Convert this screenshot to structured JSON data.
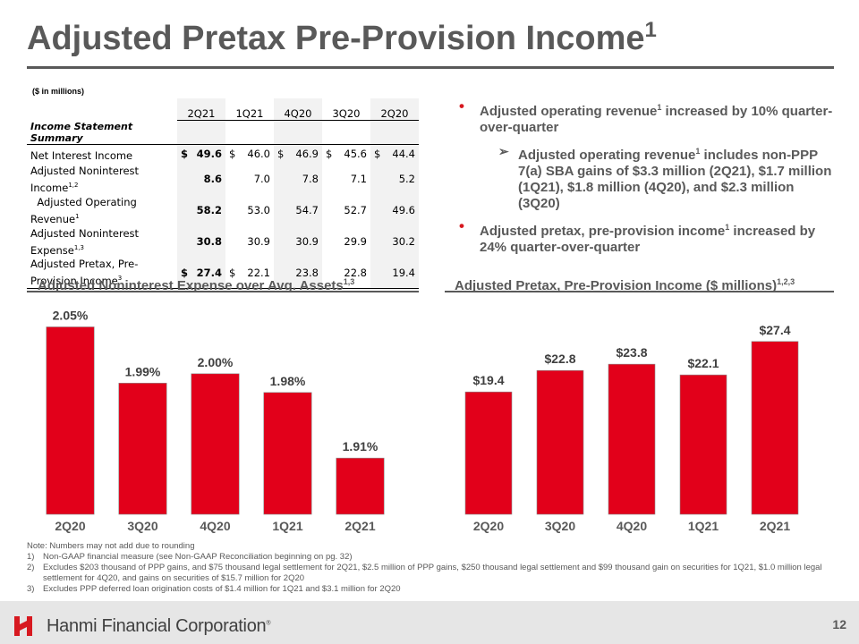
{
  "title": {
    "text": "Adjusted Pretax Pre-Provision Income",
    "sup": "1"
  },
  "table": {
    "units": "($ in millions)",
    "summary_label": "Income Statement Summary",
    "columns": [
      "2Q21",
      "1Q21",
      "4Q20",
      "3Q20",
      "2Q20"
    ],
    "rows": [
      {
        "label": "Net Interest Income",
        "sup": "",
        "cur": [
          "$",
          "$",
          "$",
          "$",
          "$"
        ],
        "values": [
          "49.6",
          "46.0",
          "46.9",
          "45.6",
          "44.4"
        ]
      },
      {
        "label": "Adjusted Noninterest Income",
        "sup": "1,2",
        "cur": [
          "",
          "",
          "",
          "",
          ""
        ],
        "values": [
          "8.6",
          "7.0",
          "7.8",
          "7.1",
          "5.2"
        ]
      },
      {
        "label": "  Adjusted Operating Revenue",
        "sup": "1",
        "cur": [
          "",
          "",
          "",
          "",
          ""
        ],
        "values": [
          "58.2",
          "53.0",
          "54.7",
          "52.7",
          "49.6"
        ]
      },
      {
        "label": "Adjusted Noninterest Expense",
        "sup": "1,3",
        "cur": [
          "",
          "",
          "",
          "",
          ""
        ],
        "values": [
          "30.8",
          "30.9",
          "30.9",
          "29.9",
          "30.2"
        ]
      },
      {
        "label": "Adjusted Pretax, Pre-Provision Income",
        "sup": "3",
        "cur": [
          "$",
          "$",
          "",
          "",
          ""
        ],
        "values": [
          "27.4",
          "22.1",
          "23.8",
          "22.8",
          "19.4"
        ]
      }
    ]
  },
  "bullets": {
    "b1": {
      "pre": "Adjusted operating revenue",
      "sup": "1",
      "post": " increased by 10% quarter-over-quarter"
    },
    "b2": {
      "pre": "Adjusted operating revenue",
      "sup": "1",
      "post": " includes non-PPP 7(a) SBA gains of $3.3 million (2Q21), $1.7 million (1Q21), $1.8 million (4Q20), and $2.3 million (3Q20)"
    },
    "b3": {
      "pre": "Adjusted pretax, pre-provision income",
      "sup": "1",
      "post": " increased by 24% quarter-over-quarter"
    },
    "dot": "•",
    "arrow": "➢"
  },
  "chart_data": [
    {
      "type": "bar",
      "title": "Adjusted Noninterest Expense over Avg. Assets",
      "title_sup": "1,3",
      "categories": [
        "2Q20",
        "3Q20",
        "4Q20",
        "1Q21",
        "2Q21"
      ],
      "values": [
        2.05,
        1.99,
        2.0,
        1.98,
        1.91
      ],
      "labels": [
        "2.05%",
        "1.99%",
        "2.00%",
        "1.98%",
        "1.91%"
      ],
      "ylim": [
        1.85,
        2.06
      ],
      "color": "#e2001a"
    },
    {
      "type": "bar",
      "title": "Adjusted Pretax, Pre-Provision Income ($ millions)",
      "title_sup": "1,2,3",
      "categories": [
        "2Q20",
        "3Q20",
        "4Q20",
        "1Q21",
        "2Q21"
      ],
      "values": [
        19.4,
        22.8,
        23.8,
        22.1,
        27.4
      ],
      "labels": [
        "$19.4",
        "$22.8",
        "$23.8",
        "$22.1",
        "$27.4"
      ],
      "ylim": [
        0,
        28.5
      ],
      "color": "#e2001a"
    }
  ],
  "notes": {
    "rounding": "Note: Numbers may not add due to rounding",
    "items": [
      {
        "num": "1)",
        "text": "Non-GAAP financial measure (see Non-GAAP Reconciliation beginning on pg. 32)"
      },
      {
        "num": "2)",
        "text": "Excludes $203 thousand of PPP gains, and $75 thousand legal settlement for 2Q21, $2.5 million of PPP gains, $250 thousand legal settlement and $99 thousand gain on securities for 1Q21, $1.0 million legal settlement for 4Q20, and gains on securities of $15.7 million for 2Q20"
      },
      {
        "num": "3)",
        "text": "Excludes PPP deferred loan origination costs of $1.4 million for 1Q21 and $3.1 million for 2Q20"
      }
    ]
  },
  "footer": {
    "company": "Hanmi Financial Corporation",
    "tm": "®",
    "page": "12",
    "brand_color": "#d71920"
  }
}
